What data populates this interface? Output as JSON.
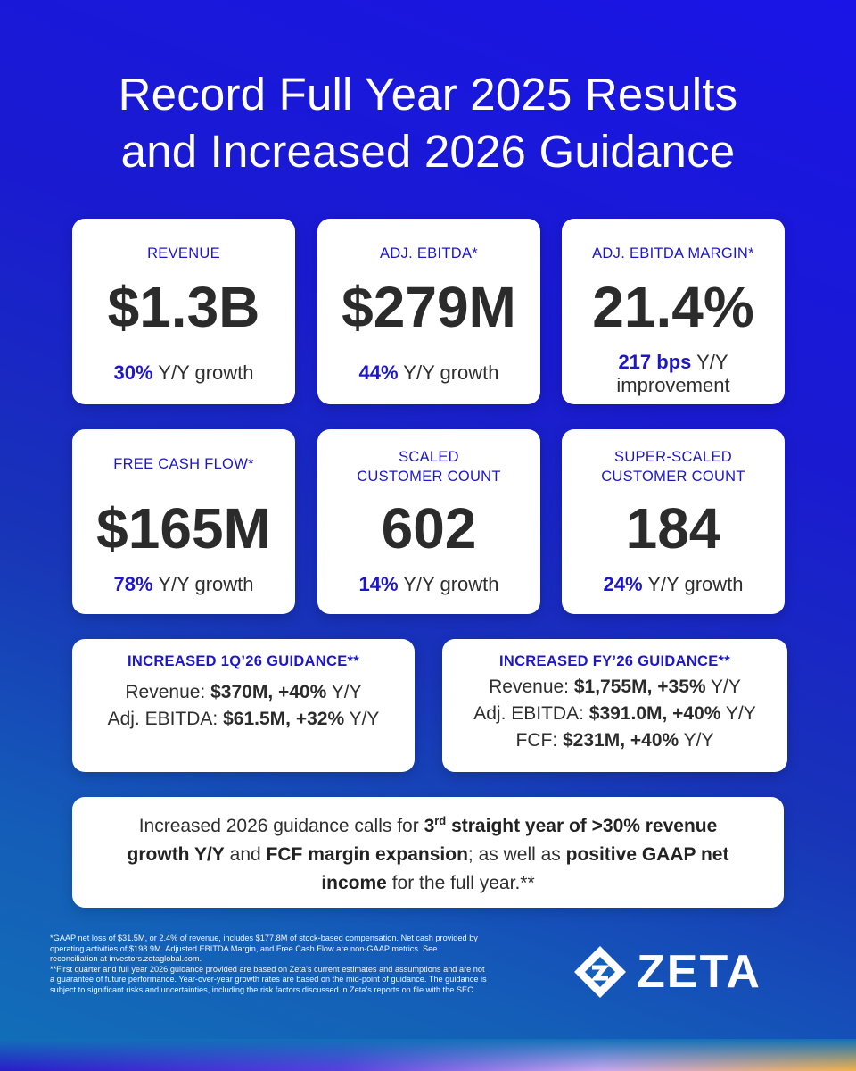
{
  "title": {
    "line1": "Record Full Year 2025 Results",
    "line2": "and Increased 2026 Guidance"
  },
  "stats": {
    "revenue": {
      "label": "REVENUE",
      "value": "$1.3B",
      "growth_bold": "30%",
      "growth_text": " Y/Y growth"
    },
    "ebitda": {
      "label": "ADJ. EBITDA*",
      "value": "$279M",
      "growth_bold": "44%",
      "growth_text": " Y/Y growth"
    },
    "margin": {
      "label": "ADJ. EBITDA MARGIN*",
      "value": "21.4%",
      "growth_bold": "217 bps",
      "growth_text": " Y/Y",
      "growth_line2": "improvement"
    },
    "fcf": {
      "label": "FREE CASH FLOW*",
      "value": "$165M",
      "growth_bold": "78%",
      "growth_text": " Y/Y growth"
    },
    "scaled": {
      "label_line1": "SCALED",
      "label_line2": "CUSTOMER COUNT",
      "value": "602",
      "growth_bold": "14%",
      "growth_text": " Y/Y growth"
    },
    "super_scaled": {
      "label_line1": "SUPER-SCALED",
      "label_line2": "CUSTOMER COUNT",
      "value": "184",
      "growth_bold": "24%",
      "growth_text": " Y/Y growth"
    }
  },
  "guidance_q1": {
    "heading": "INCREASED 1Q’26 GUIDANCE**",
    "rev_label": "Revenue: ",
    "rev_value": "$370M, +40%",
    "rev_suffix": " Y/Y",
    "ebitda_label": "Adj. EBITDA: ",
    "ebitda_value": "$61.5M, +32%",
    "ebitda_suffix": " Y/Y"
  },
  "guidance_fy": {
    "heading": "INCREASED FY’26 GUIDANCE**",
    "rev_label": "Revenue: ",
    "rev_value": "$1,755M, +35%",
    "rev_suffix": " Y/Y",
    "ebitda_label": "Adj. EBITDA: ",
    "ebitda_value": "$391.0M, +40%",
    "ebitda_suffix": " Y/Y",
    "fcf_label": "FCF: ",
    "fcf_value": "$231M, +40%",
    "fcf_suffix": " Y/Y"
  },
  "summary": {
    "t1": "Increased 2026 guidance calls for ",
    "b1": "3",
    "sup": "rd",
    "b2": " straight year of >30% revenue growth Y/Y",
    "t2": " and ",
    "b3": "FCF margin expansion",
    "t3": "; as well as ",
    "b4": "positive GAAP net income",
    "t4": " for the full year.**"
  },
  "footnotes": {
    "note1": "*GAAP net loss of $31.5M, or 2.4% of revenue, includes $177.8M of stock-based compensation. Net cash provided by operating activities of $198.9M. Adjusted EBITDA Margin, and Free Cash Flow are non-GAAP metrics. See reconciliation at investors.zetaglobal.com.",
    "note2": "**First quarter and full year 2026 guidance provided are based on Zeta’s current estimates and assumptions and are not a guarantee of future performance. Year-over-year growth rates are based on the mid-point of guidance. The guidance is subject to significant risks and uncertainties, including the risk factors discussed in Zeta’s reports on file with the SEC."
  },
  "logo": {
    "word": "ZETA",
    "icon": "zeta-diamond-icon"
  },
  "colors": {
    "accent": "#1d17c8",
    "text": "#2b2b2b",
    "bg_top": "#1a14e6",
    "bg_bottom": "#1270b8"
  }
}
